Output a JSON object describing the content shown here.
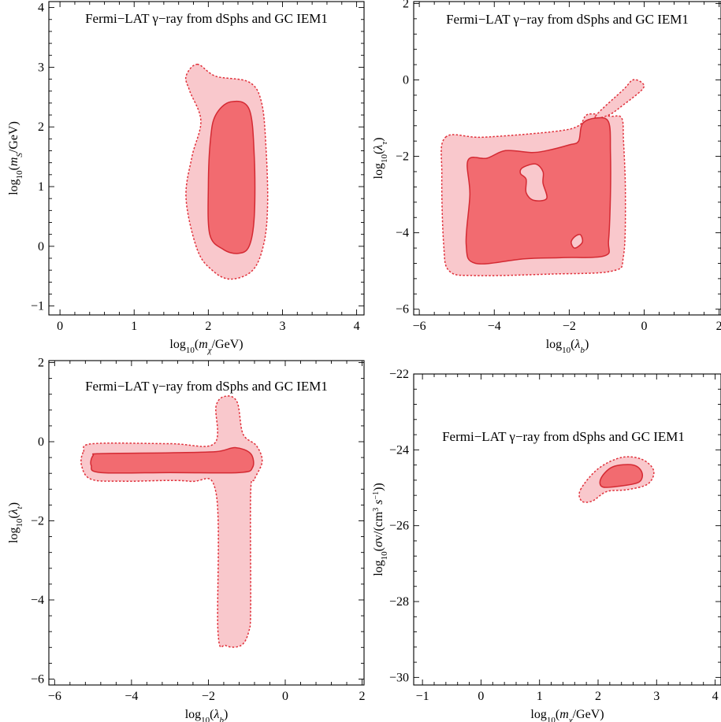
{
  "figure": {
    "colors": {
      "outer_fill": "#f9c8cc",
      "inner_fill": "#f26b70",
      "outline": "#e0303a"
    }
  },
  "chart_data": [
    {
      "type": "contour",
      "title": "Fermi−LAT γ−ray from dSphs and GC IEM1",
      "xlabel": "log10(mχ/GeV)",
      "ylabel": "log10(mS/GeV)",
      "xlim": [
        -0.15,
        4.1
      ],
      "ylim": [
        -1.15,
        4.1
      ],
      "xticks": [
        0,
        1,
        2,
        3,
        4
      ],
      "yticks": [
        -1,
        0,
        1,
        2,
        3,
        4
      ],
      "series": [
        {
          "level": "outer",
          "points": [
            [
              1.85,
              3.05
            ],
            [
              2.1,
              2.85
            ],
            [
              2.55,
              2.75
            ],
            [
              2.72,
              2.4
            ],
            [
              2.78,
              1.6
            ],
            [
              2.8,
              0.7
            ],
            [
              2.75,
              0.05
            ],
            [
              2.6,
              -0.4
            ],
            [
              2.3,
              -0.55
            ],
            [
              2.05,
              -0.4
            ],
            [
              1.85,
              -0.05
            ],
            [
              1.7,
              0.8
            ],
            [
              1.78,
              1.5
            ],
            [
              1.9,
              2.1
            ],
            [
              1.75,
              2.6
            ],
            [
              1.7,
              2.85
            ]
          ]
        },
        {
          "level": "inner",
          "points": [
            [
              2.1,
              2.2
            ],
            [
              2.3,
              2.42
            ],
            [
              2.55,
              2.3
            ],
            [
              2.62,
              1.5
            ],
            [
              2.62,
              0.5
            ],
            [
              2.55,
              0.0
            ],
            [
              2.4,
              -0.12
            ],
            [
              2.2,
              -0.05
            ],
            [
              2.02,
              0.2
            ],
            [
              2.0,
              1.0
            ],
            [
              2.03,
              1.8
            ]
          ]
        }
      ]
    },
    {
      "type": "contour",
      "title": "Fermi−LAT γ−ray from dSphs and GC IEM1",
      "xlabel": "log10(λb)",
      "ylabel": "log10(λτ)",
      "xlim": [
        -6.15,
        2.05
      ],
      "ylim": [
        -6.15,
        2.05
      ],
      "xticks": [
        -6,
        -4,
        -2,
        0,
        2
      ],
      "yticks": [
        -6,
        -4,
        -2,
        0,
        2
      ],
      "series": [
        {
          "level": "outer",
          "points": [
            [
              -5.3,
              -1.5
            ],
            [
              -4.3,
              -1.5
            ],
            [
              -2.4,
              -1.35
            ],
            [
              -1.75,
              -1.2
            ],
            [
              -1.5,
              -0.9
            ],
            [
              -0.9,
              -0.95
            ],
            [
              -0.6,
              -1.0
            ],
            [
              -0.55,
              -1.6
            ],
            [
              -0.5,
              -3.0
            ],
            [
              -0.55,
              -4.6
            ],
            [
              -0.85,
              -5.0
            ],
            [
              -2.5,
              -5.08
            ],
            [
              -4.5,
              -5.12
            ],
            [
              -5.2,
              -5.0
            ],
            [
              -5.35,
              -4.3
            ],
            [
              -5.4,
              -2.5
            ]
          ]
        },
        {
          "level": "outer",
          "points": [
            [
              -1.3,
              -0.95
            ],
            [
              -0.55,
              -0.25
            ],
            [
              -0.3,
              0.0
            ],
            [
              -0.05,
              -0.08
            ],
            [
              -0.05,
              -0.25
            ],
            [
              -0.55,
              -0.65
            ],
            [
              -0.95,
              -0.92
            ]
          ]
        },
        {
          "level": "inner",
          "points": [
            [
              -4.7,
              -2.1
            ],
            [
              -4.2,
              -2.05
            ],
            [
              -3.7,
              -1.85
            ],
            [
              -3.0,
              -1.9
            ],
            [
              -2.6,
              -1.85
            ],
            [
              -2.0,
              -1.7
            ],
            [
              -1.75,
              -1.6
            ],
            [
              -1.65,
              -1.15
            ],
            [
              -1.3,
              -1.0
            ],
            [
              -0.95,
              -1.1
            ],
            [
              -0.9,
              -1.9
            ],
            [
              -0.9,
              -3.0
            ],
            [
              -0.95,
              -4.2
            ],
            [
              -1.05,
              -4.6
            ],
            [
              -2.2,
              -4.65
            ],
            [
              -3.2,
              -4.68
            ],
            [
              -4.5,
              -4.8
            ],
            [
              -4.75,
              -4.3
            ],
            [
              -4.65,
              -3.0
            ]
          ]
        },
        {
          "level": "hole",
          "points": [
            [
              -3.25,
              -2.3
            ],
            [
              -2.9,
              -2.2
            ],
            [
              -2.7,
              -2.4
            ],
            [
              -2.7,
              -2.7
            ],
            [
              -2.6,
              -3.1
            ],
            [
              -2.95,
              -3.15
            ],
            [
              -3.15,
              -2.95
            ],
            [
              -3.15,
              -2.6
            ],
            [
              -3.3,
              -2.45
            ]
          ]
        },
        {
          "level": "hole",
          "points": [
            [
              -1.7,
              -4.05
            ],
            [
              -1.65,
              -4.25
            ],
            [
              -1.85,
              -4.4
            ],
            [
              -1.95,
              -4.25
            ],
            [
              -1.85,
              -4.1
            ]
          ]
        }
      ]
    },
    {
      "type": "contour",
      "title": "Fermi−LAT γ−ray from dSphs and GC IEM1",
      "xlabel": "log10(λb)",
      "ylabel": "log10(λt)",
      "xlim": [
        -6.15,
        2.05
      ],
      "ylim": [
        -6.15,
        2.05
      ],
      "xticks": [
        -6,
        -4,
        -2,
        0,
        2
      ],
      "yticks": [
        -6,
        -4,
        -2,
        0,
        2
      ],
      "series": [
        {
          "level": "outer",
          "points": [
            [
              -5.25,
              -0.25
            ],
            [
              -5.0,
              -0.05
            ],
            [
              -3.0,
              -0.05
            ],
            [
              -1.85,
              -0.05
            ],
            [
              -1.8,
              0.9
            ],
            [
              -1.55,
              1.15
            ],
            [
              -1.25,
              1.0
            ],
            [
              -1.1,
              0.2
            ],
            [
              -0.75,
              -0.1
            ],
            [
              -0.6,
              -0.5
            ],
            [
              -0.8,
              -0.95
            ],
            [
              -0.9,
              -1.3
            ],
            [
              -0.9,
              -4.2
            ],
            [
              -0.95,
              -4.8
            ],
            [
              -1.15,
              -5.15
            ],
            [
              -1.55,
              -5.15
            ],
            [
              -1.75,
              -4.8
            ],
            [
              -1.8,
              -1.3
            ],
            [
              -2.5,
              -1.0
            ],
            [
              -4.2,
              -1.0
            ],
            [
              -5.05,
              -0.95
            ],
            [
              -5.3,
              -0.6
            ]
          ]
        },
        {
          "level": "inner",
          "points": [
            [
              -5.0,
              -0.35
            ],
            [
              -4.8,
              -0.3
            ],
            [
              -3.0,
              -0.28
            ],
            [
              -1.8,
              -0.25
            ],
            [
              -1.3,
              -0.15
            ],
            [
              -0.9,
              -0.3
            ],
            [
              -0.85,
              -0.65
            ],
            [
              -1.2,
              -0.78
            ],
            [
              -3.0,
              -0.78
            ],
            [
              -4.8,
              -0.78
            ],
            [
              -5.05,
              -0.6
            ]
          ]
        }
      ]
    },
    {
      "type": "contour",
      "title": "Fermi−LAT γ−ray from dSphs and GC IEM1",
      "xlabel": "log10(mχ/GeV)",
      "ylabel": "log10(σv/(cm³ s⁻¹))",
      "xlim": [
        -1.15,
        4.1
      ],
      "ylim": [
        -30.2,
        -22.0
      ],
      "xticks": [
        -1,
        0,
        1,
        2,
        3,
        4
      ],
      "yticks": [
        -30,
        -28,
        -26,
        -24,
        -22
      ],
      "series": [
        {
          "level": "outer",
          "points": [
            [
              1.7,
              -25.05
            ],
            [
              2.0,
              -24.5
            ],
            [
              2.4,
              -24.2
            ],
            [
              2.75,
              -24.25
            ],
            [
              2.95,
              -24.55
            ],
            [
              2.85,
              -24.9
            ],
            [
              2.5,
              -25.05
            ],
            [
              2.15,
              -25.1
            ],
            [
              1.9,
              -25.35
            ],
            [
              1.72,
              -25.35
            ]
          ]
        },
        {
          "level": "inner",
          "points": [
            [
              2.05,
              -24.75
            ],
            [
              2.25,
              -24.45
            ],
            [
              2.6,
              -24.4
            ],
            [
              2.75,
              -24.6
            ],
            [
              2.7,
              -24.85
            ],
            [
              2.4,
              -24.95
            ],
            [
              2.08,
              -24.98
            ]
          ]
        }
      ]
    }
  ]
}
